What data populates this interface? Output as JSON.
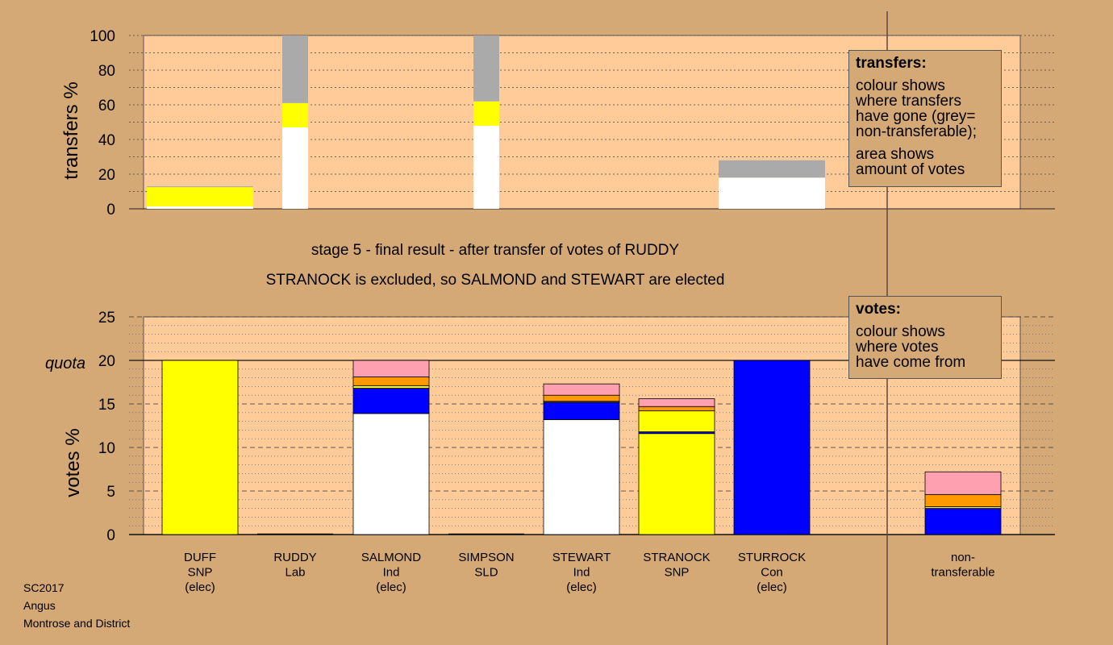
{
  "footer": {
    "line1": "SC2017",
    "line2": "Angus",
    "line3": "Montrose and District"
  },
  "stage_text": "stage 5 - final result - after transfer of votes of RUDDY",
  "result_text": "STRANOCK is excluded, so SALMOND and STEWART are elected",
  "transfers_legend": {
    "title": "transfers:",
    "lines1": [
      "colour shows",
      "where transfers",
      "have gone (grey=",
      "non-transferable);"
    ],
    "lines2": [
      "area shows",
      "amount of votes"
    ]
  },
  "votes_legend": {
    "title": "votes:",
    "lines": [
      "colour shows",
      "where votes",
      "have come from"
    ]
  },
  "colors": {
    "plot_bg": "#ffcc99",
    "page_bg": "#d4a976",
    "SNP": "#ffff00",
    "Con": "#0000ff",
    "Lab": "#ffa0b0",
    "SLD": "#ff9900",
    "Ind": "#ffffff",
    "nontransferable": "#aaaaaa"
  },
  "chart_data": [
    {
      "type": "bar",
      "ylabel": "transfers %",
      "ylim": [
        0,
        100
      ],
      "yticks": [
        0,
        20,
        40,
        60,
        80,
        100
      ],
      "grid": true,
      "bars": [
        {
          "slot": 0,
          "width": "wide",
          "segments": [
            {
              "color": "#ffffff",
              "from": 0,
              "to": 1.5
            },
            {
              "color": "#ffff00",
              "from": 1.5,
              "to": 12.5
            },
            {
              "color": "#aaaaaa",
              "from": 12.5,
              "to": 13
            }
          ]
        },
        {
          "slot": 1,
          "width": "narrow",
          "segments": [
            {
              "color": "#ffffff",
              "from": 0,
              "to": 47
            },
            {
              "color": "#ffff00",
              "from": 47,
              "to": 61
            },
            {
              "color": "#aaaaaa",
              "from": 61,
              "to": 100
            }
          ]
        },
        {
          "slot": 3,
          "width": "narrow",
          "segments": [
            {
              "color": "#ffffff",
              "from": 0,
              "to": 48
            },
            {
              "color": "#ffff00",
              "from": 48,
              "to": 62
            },
            {
              "color": "#aaaaaa",
              "from": 62,
              "to": 100
            }
          ]
        },
        {
          "slot": 6,
          "width": "wide",
          "segments": [
            {
              "color": "#ffffff",
              "from": 0,
              "to": 18
            },
            {
              "color": "#aaaaaa",
              "from": 18,
              "to": 28
            }
          ]
        }
      ]
    },
    {
      "type": "bar",
      "ylabel": "votes %",
      "ylim": [
        0,
        25
      ],
      "yticks": [
        0,
        5,
        10,
        15,
        20,
        25
      ],
      "quota_label": "quota",
      "quota": 20,
      "grid": true,
      "categories": [
        {
          "name": "DUFF",
          "party": "SNP",
          "status": "(elec)"
        },
        {
          "name": "RUDDY",
          "party": "Lab",
          "status": ""
        },
        {
          "name": "SALMOND",
          "party": "Ind",
          "status": "(elec)"
        },
        {
          "name": "SIMPSON",
          "party": "SLD",
          "status": ""
        },
        {
          "name": "STEWART",
          "party": "Ind",
          "status": "(elec)"
        },
        {
          "name": "STRANOCK",
          "party": "SNP",
          "status": ""
        },
        {
          "name": "STURROCK",
          "party": "Con",
          "status": "(elec)"
        },
        {
          "name": "",
          "party": "",
          "status": ""
        },
        {
          "name": "non-",
          "party": "transferable",
          "status": ""
        }
      ],
      "stacks": [
        [
          {
            "color": "#ffff00",
            "value": 20
          }
        ],
        [],
        [
          {
            "color": "#ffffff",
            "value": 13.9
          },
          {
            "color": "#0000ff",
            "value": 2.9
          },
          {
            "color": "#ffff00",
            "value": 0.3
          },
          {
            "color": "#ff9900",
            "value": 1.0
          },
          {
            "color": "#ffa0b0",
            "value": 1.9
          }
        ],
        [],
        [
          {
            "color": "#ffffff",
            "value": 13.2
          },
          {
            "color": "#0000ff",
            "value": 2.0
          },
          {
            "color": "#ffff00",
            "value": 0.1
          },
          {
            "color": "#ff9900",
            "value": 0.7
          },
          {
            "color": "#ffa0b0",
            "value": 1.3
          }
        ],
        [
          {
            "color": "#ffff00",
            "value": 11.6
          },
          {
            "color": "#0000ff",
            "value": 0.2
          },
          {
            "color": "#ffff00",
            "value": 2.4
          },
          {
            "color": "#ff9900",
            "value": 0.5
          },
          {
            "color": "#ffa0b0",
            "value": 0.9
          }
        ],
        [
          {
            "color": "#0000ff",
            "value": 20
          }
        ],
        [],
        [
          {
            "color": "#0000ff",
            "value": 3.0
          },
          {
            "color": "#ffff00",
            "value": 0.2
          },
          {
            "color": "#ff9900",
            "value": 1.4
          },
          {
            "color": "#ffa0b0",
            "value": 2.6
          }
        ]
      ]
    }
  ]
}
